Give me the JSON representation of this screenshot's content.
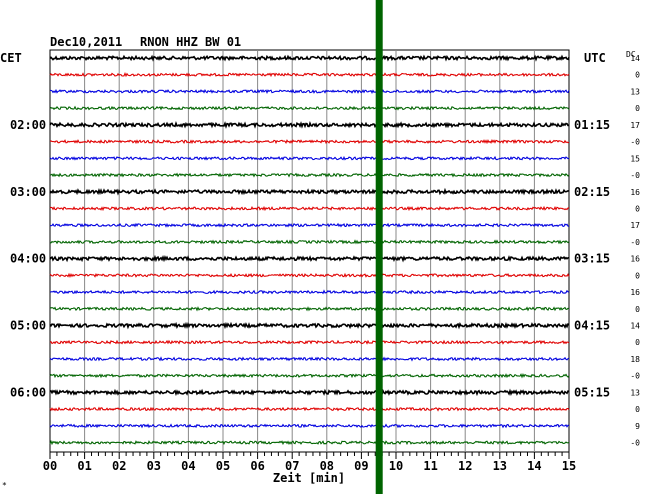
{
  "header": {
    "date": "Dec10,2011",
    "station": "RNON HHZ BW 01",
    "left_timezone": "CET",
    "right_timezone": "UTC",
    "dc_label": "DC"
  },
  "footer": {
    "xlabel": "Zeit [min]",
    "corner_mark": "*"
  },
  "chart_data": {
    "type": "line",
    "title": "Dec10,2011   RNON HHZ BW 01",
    "xlabel": "Zeit [min]",
    "ylabel": "",
    "xlim": [
      0,
      15
    ],
    "x_ticks": [
      "00",
      "01",
      "02",
      "03",
      "04",
      "05",
      "06",
      "07",
      "08",
      "09",
      "10",
      "11",
      "12",
      "13",
      "14",
      "15"
    ],
    "grid": true,
    "row_colors": [
      "#000000",
      "#e00000",
      "#0000e0",
      "#006400"
    ],
    "rows": 24,
    "rows_per_hour": 4,
    "left_hour_labels": [
      "02:00",
      "03:00",
      "04:00",
      "05:00",
      "06:00"
    ],
    "right_hour_labels": [
      "01:15",
      "02:15",
      "03:15",
      "04:15",
      "05:15"
    ],
    "hour_label_rows": [
      4,
      8,
      12,
      16,
      20
    ],
    "dc_values": [
      "14",
      "0",
      "13",
      "0",
      "17",
      "-0",
      "15",
      "-0",
      "16",
      "0",
      "17",
      "-0",
      "16",
      "0",
      "16",
      "0",
      "14",
      "0",
      "18",
      "-0",
      "13",
      "0",
      "9",
      "-0"
    ],
    "event": {
      "minute": 9.5,
      "color": "#006400",
      "full_height": true
    }
  }
}
